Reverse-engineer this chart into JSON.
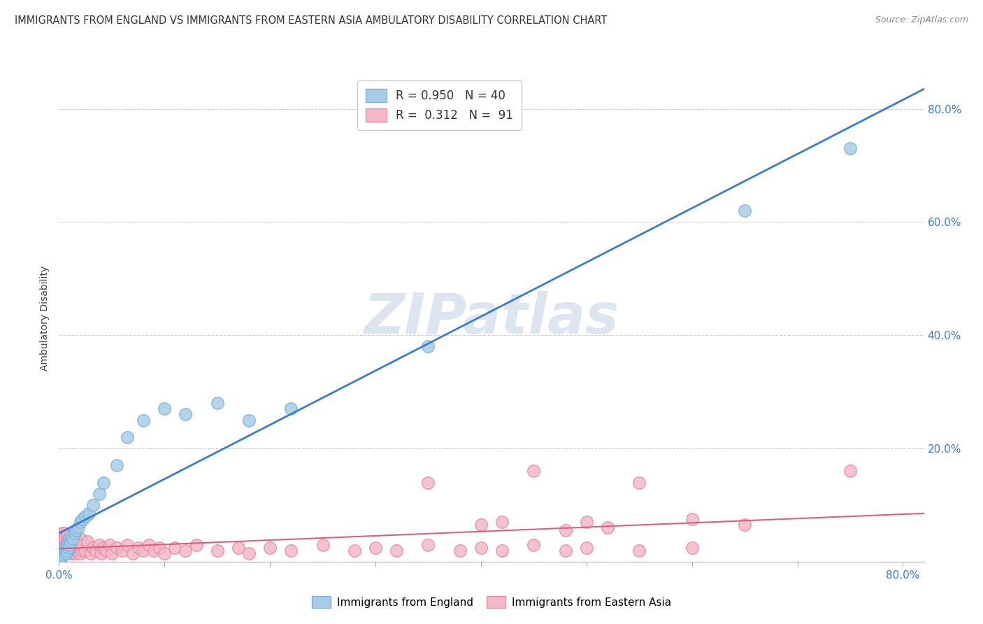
{
  "title": "IMMIGRANTS FROM ENGLAND VS IMMIGRANTS FROM EASTERN ASIA AMBULATORY DISABILITY CORRELATION CHART",
  "source": "Source: ZipAtlas.com",
  "ylabel": "Ambulatory Disability",
  "y_tick_vals": [
    0.0,
    0.2,
    0.4,
    0.6,
    0.8
  ],
  "y_tick_labels_right": [
    "",
    "20.0%",
    "40.0%",
    "60.0%",
    "80.0%"
  ],
  "x_tick_vals": [
    0.0,
    0.1,
    0.2,
    0.3,
    0.4,
    0.5,
    0.6,
    0.7,
    0.8
  ],
  "x_tick_labels": [
    "0.0%",
    "",
    "",
    "",
    "",
    "",
    "",
    "",
    "80.0%"
  ],
  "england_R": 0.95,
  "england_N": 40,
  "eastern_asia_R": 0.312,
  "eastern_asia_N": 91,
  "legend_label_england": "R = 0.950   N = 40",
  "legend_label_eastern_asia": "R =  0.312   N =  91",
  "legend_label_england_bottom": "Immigrants from England",
  "legend_label_eastern_asia_bottom": "Immigrants from Eastern Asia",
  "blue_scatter_face": "#a8cce8",
  "blue_scatter_edge": "#7ab3d8",
  "blue_line_color": "#3a7dc9",
  "pink_scatter_face": "#f4b8c8",
  "pink_scatter_edge": "#e88aa0",
  "pink_line_color": "#d96080",
  "background_color": "#ffffff",
  "grid_color": "#c8c8d8",
  "watermark_color": "#dde5f0",
  "xlim": [
    0.0,
    0.82
  ],
  "ylim": [
    0.0,
    0.86
  ],
  "eng_x": [
    0.001,
    0.002,
    0.003,
    0.003,
    0.004,
    0.004,
    0.005,
    0.005,
    0.006,
    0.007,
    0.007,
    0.008,
    0.008,
    0.009,
    0.01,
    0.01,
    0.011,
    0.012,
    0.013,
    0.015,
    0.016,
    0.018,
    0.02,
    0.022,
    0.025,
    0.028,
    0.032,
    0.038,
    0.042,
    0.055,
    0.065,
    0.08,
    0.1,
    0.12,
    0.15,
    0.18,
    0.22,
    0.35,
    0.65,
    0.75
  ],
  "eng_y": [
    0.005,
    0.008,
    0.01,
    0.015,
    0.012,
    0.02,
    0.018,
    0.025,
    0.022,
    0.015,
    0.028,
    0.02,
    0.03,
    0.025,
    0.03,
    0.04,
    0.035,
    0.045,
    0.04,
    0.05,
    0.055,
    0.06,
    0.07,
    0.075,
    0.08,
    0.085,
    0.1,
    0.12,
    0.14,
    0.17,
    0.22,
    0.25,
    0.27,
    0.26,
    0.28,
    0.25,
    0.27,
    0.38,
    0.62,
    0.73
  ],
  "eas_x": [
    0.001,
    0.001,
    0.001,
    0.002,
    0.002,
    0.002,
    0.003,
    0.003,
    0.003,
    0.004,
    0.004,
    0.005,
    0.005,
    0.005,
    0.006,
    0.006,
    0.007,
    0.007,
    0.008,
    0.008,
    0.009,
    0.009,
    0.01,
    0.01,
    0.011,
    0.012,
    0.012,
    0.013,
    0.014,
    0.015,
    0.015,
    0.016,
    0.017,
    0.018,
    0.02,
    0.02,
    0.022,
    0.023,
    0.025,
    0.027,
    0.03,
    0.032,
    0.035,
    0.038,
    0.04,
    0.042,
    0.045,
    0.048,
    0.05,
    0.055,
    0.06,
    0.065,
    0.07,
    0.075,
    0.08,
    0.085,
    0.09,
    0.095,
    0.1,
    0.11,
    0.12,
    0.13,
    0.15,
    0.17,
    0.18,
    0.2,
    0.22,
    0.25,
    0.28,
    0.3,
    0.32,
    0.35,
    0.38,
    0.4,
    0.42,
    0.45,
    0.48,
    0.5,
    0.55,
    0.6,
    0.35,
    0.4,
    0.42,
    0.45,
    0.48,
    0.5,
    0.52,
    0.55,
    0.6,
    0.65,
    0.75
  ],
  "eas_y": [
    0.02,
    0.03,
    0.04,
    0.02,
    0.035,
    0.045,
    0.015,
    0.025,
    0.05,
    0.02,
    0.04,
    0.015,
    0.03,
    0.05,
    0.02,
    0.04,
    0.015,
    0.035,
    0.02,
    0.045,
    0.015,
    0.04,
    0.02,
    0.035,
    0.025,
    0.015,
    0.04,
    0.02,
    0.03,
    0.015,
    0.04,
    0.02,
    0.035,
    0.025,
    0.015,
    0.04,
    0.02,
    0.03,
    0.02,
    0.035,
    0.015,
    0.025,
    0.02,
    0.03,
    0.015,
    0.025,
    0.02,
    0.03,
    0.015,
    0.025,
    0.02,
    0.03,
    0.015,
    0.025,
    0.02,
    0.03,
    0.02,
    0.025,
    0.015,
    0.025,
    0.02,
    0.03,
    0.02,
    0.025,
    0.015,
    0.025,
    0.02,
    0.03,
    0.02,
    0.025,
    0.02,
    0.03,
    0.02,
    0.025,
    0.02,
    0.03,
    0.02,
    0.025,
    0.02,
    0.025,
    0.14,
    0.065,
    0.07,
    0.16,
    0.055,
    0.07,
    0.06,
    0.14,
    0.075,
    0.065,
    0.16
  ]
}
